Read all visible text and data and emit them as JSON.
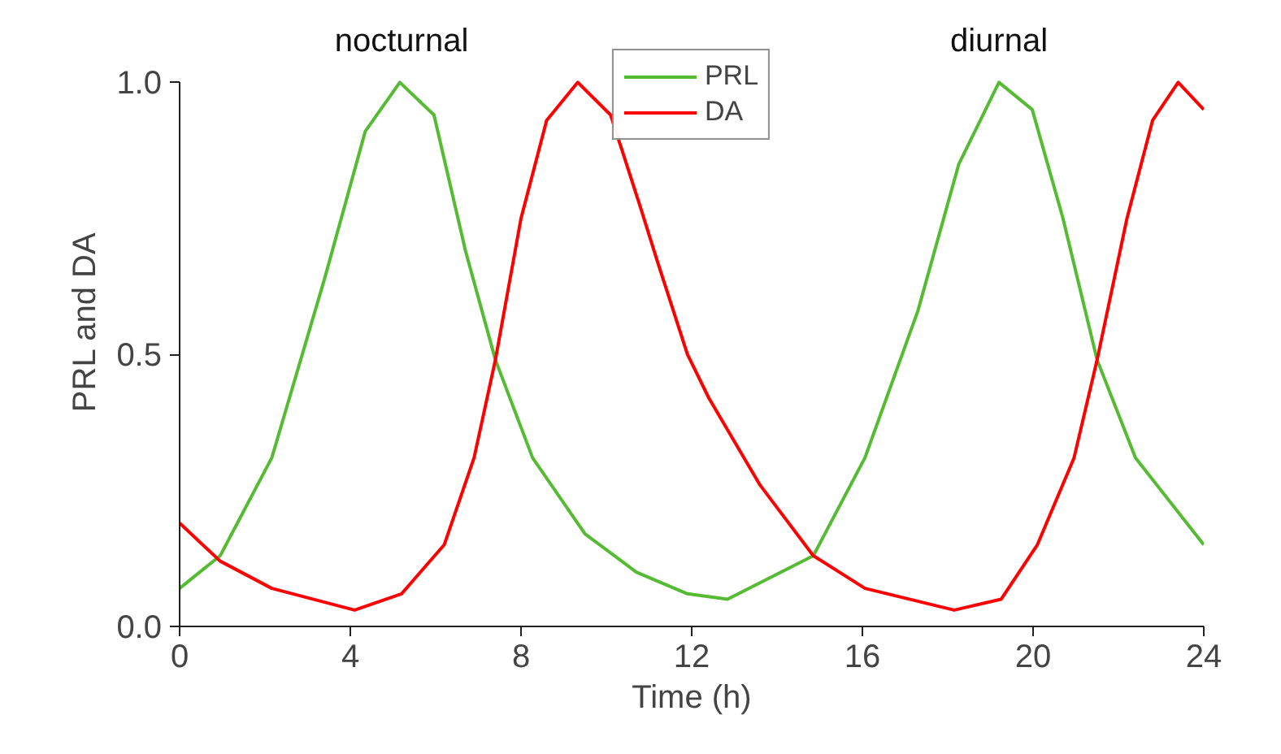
{
  "chart_data": {
    "type": "line",
    "xlabel": "Time (h)",
    "ylabel": "PRL and DA",
    "xlim": [
      0,
      24
    ],
    "xticks": [
      0,
      4,
      8,
      12,
      16,
      20,
      24
    ],
    "ylim": [
      0,
      1.0
    ],
    "yticks": [
      {
        "value": 0,
        "label": "0.0"
      },
      {
        "value": 0.5,
        "label": "0.5"
      },
      {
        "value": 1.0,
        "label": "1.0"
      }
    ],
    "grid": false,
    "legend": "top",
    "line_style": "solid",
    "marker": "none",
    "annotations": [
      {
        "text": "nocturnal",
        "x": 5.2,
        "y": 1.0
      },
      {
        "text": "diurnal",
        "x": 19.2,
        "y": 1.0
      }
    ],
    "series": [
      {
        "name": "PRL",
        "color": "#55bb33",
        "x": [
          0,
          0.95,
          2.16,
          3.4,
          4.35,
          5.16,
          5.96,
          6.7,
          7.4,
          8.27,
          9.5,
          10.7,
          11.9,
          12.84,
          14.85,
          16.06,
          17.3,
          18.26,
          19.2,
          19.98,
          20.7,
          21.5,
          22.4,
          24
        ],
        "values": [
          0.07,
          0.13,
          0.31,
          0.64,
          0.91,
          1.0,
          0.94,
          0.69,
          0.49,
          0.31,
          0.17,
          0.1,
          0.06,
          0.05,
          0.13,
          0.31,
          0.58,
          0.85,
          1.0,
          0.95,
          0.75,
          0.49,
          0.31,
          0.15
        ]
      },
      {
        "name": "DA",
        "color": "#ff0000",
        "x": [
          0,
          0.95,
          2.16,
          4.1,
          5.2,
          6.2,
          6.9,
          7.4,
          8.0,
          8.6,
          9.33,
          10.1,
          10.8,
          11.2,
          11.9,
          12.4,
          13.6,
          14.85,
          16.06,
          18.15,
          19.25,
          20.1,
          20.96,
          21.5,
          22.2,
          22.8,
          23.4,
          24
        ],
        "values": [
          0.19,
          0.12,
          0.07,
          0.03,
          0.06,
          0.15,
          0.31,
          0.49,
          0.75,
          0.93,
          1.0,
          0.94,
          0.77,
          0.67,
          0.5,
          0.42,
          0.26,
          0.13,
          0.07,
          0.03,
          0.05,
          0.15,
          0.31,
          0.49,
          0.75,
          0.93,
          1.0,
          0.95
        ]
      }
    ]
  }
}
